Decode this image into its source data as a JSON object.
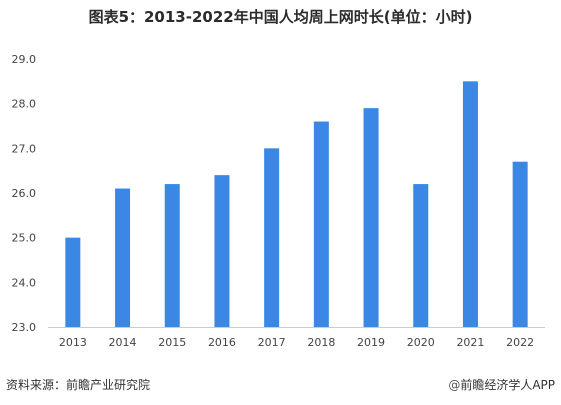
{
  "chart_data": {
    "type": "bar",
    "title": "图表5：2013-2022年中国人均周上网时长(单位：小时)",
    "xlabel": "",
    "ylabel": "",
    "categories": [
      "2013",
      "2014",
      "2015",
      "2016",
      "2017",
      "2018",
      "2019",
      "2020",
      "2021",
      "2022"
    ],
    "values": [
      25.0,
      26.1,
      26.2,
      26.4,
      27.0,
      27.6,
      27.9,
      26.2,
      28.5,
      26.7
    ],
    "ylim": [
      23.0,
      29.0
    ],
    "yticks": [
      "23.0",
      "24.0",
      "25.0",
      "26.0",
      "27.0",
      "28.0",
      "29.0"
    ],
    "grid": false,
    "bar_color": "#3a87e6",
    "legend": "none"
  },
  "footer": {
    "source": "资料来源：前瞻产业研究院",
    "brand": "前瞻经济学人APP",
    "brand_symbol": "@"
  },
  "colors": {
    "bar": "#3a87e6",
    "axis": "#cccccc",
    "tick_text": "#444444"
  }
}
